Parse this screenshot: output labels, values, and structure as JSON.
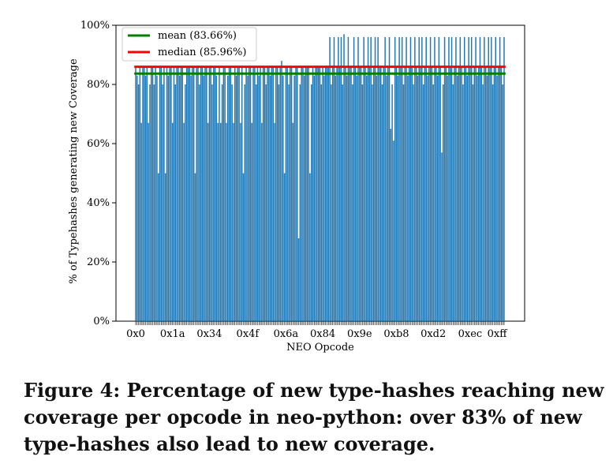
{
  "chart_data": {
    "type": "bar",
    "xlabel": "NEO Opcode",
    "ylabel": "% of Typehashes generating new Coverage",
    "ylim": [
      0,
      100
    ],
    "y_ticks": [
      "0%",
      "20%",
      "40%",
      "60%",
      "80%",
      "100%"
    ],
    "x_tick_labels": [
      "0x0",
      "0x1a",
      "0x34",
      "0x4f",
      "0x6a",
      "0x84",
      "0x9e",
      "0xb8",
      "0xd2",
      "0xec",
      "0xff"
    ],
    "x_tick_positions": [
      0,
      26,
      52,
      79,
      106,
      132,
      158,
      184,
      210,
      236,
      255
    ],
    "bar_color": "#1f77b4",
    "values": [
      86,
      83,
      80,
      86,
      67,
      86,
      86,
      83,
      86,
      67,
      80,
      86,
      86,
      80,
      86,
      83,
      50,
      86,
      86,
      80,
      86,
      50,
      86,
      83,
      86,
      86,
      67,
      86,
      80,
      86,
      86,
      83,
      86,
      86,
      67,
      80,
      86,
      86,
      86,
      83,
      86,
      86,
      50,
      86,
      86,
      80,
      86,
      86,
      83,
      86,
      86,
      67,
      86,
      86,
      80,
      86,
      86,
      83,
      67,
      86,
      67,
      80,
      86,
      86,
      67,
      83,
      86,
      86,
      80,
      67,
      86,
      83,
      86,
      86,
      67,
      86,
      50,
      80,
      86,
      83,
      86,
      86,
      67,
      86,
      86,
      80,
      86,
      83,
      86,
      67,
      86,
      86,
      80,
      86,
      86,
      83,
      86,
      86,
      67,
      86,
      86,
      80,
      86,
      88,
      83,
      50,
      86,
      86,
      80,
      86,
      86,
      67,
      83,
      86,
      86,
      28,
      80,
      86,
      86,
      83,
      86,
      86,
      86,
      50,
      80,
      86,
      83,
      86,
      86,
      86,
      86,
      80,
      86,
      83,
      86,
      86,
      86,
      96,
      80,
      86,
      96,
      83,
      86,
      96,
      86,
      96,
      80,
      97,
      86,
      83,
      96,
      86,
      86,
      80,
      96,
      86,
      83,
      96,
      86,
      86,
      80,
      96,
      86,
      83,
      96,
      86,
      96,
      80,
      86,
      96,
      83,
      96,
      86,
      86,
      80,
      86,
      96,
      83,
      86,
      96,
      65,
      80,
      61,
      96,
      86,
      83,
      96,
      86,
      96,
      80,
      86,
      96,
      83,
      86,
      96,
      86,
      80,
      96,
      86,
      83,
      96,
      86,
      96,
      80,
      86,
      96,
      83,
      86,
      96,
      86,
      80,
      96,
      86,
      83,
      96,
      86,
      57,
      80,
      96,
      86,
      83,
      96,
      86,
      96,
      80,
      86,
      96,
      83,
      86,
      96,
      86,
      80,
      96,
      86,
      83,
      96,
      86,
      96,
      80,
      86,
      96,
      83,
      86,
      96,
      86,
      80,
      96,
      86,
      83,
      96,
      86,
      96,
      80,
      86,
      96,
      83,
      86,
      96,
      86,
      80,
      96
    ],
    "series": [
      {
        "name": "mean (83.66%)",
        "value": 83.66,
        "color": "#008000"
      },
      {
        "name": "median (85.96%)",
        "value": 85.96,
        "color": "#ff0000"
      }
    ],
    "legend_position": "top-left"
  },
  "caption": "Figure 4: Percentage of new type-hashes reaching new coverage per opcode in neo-python: over 83% of new type-hashes also lead to new coverage."
}
